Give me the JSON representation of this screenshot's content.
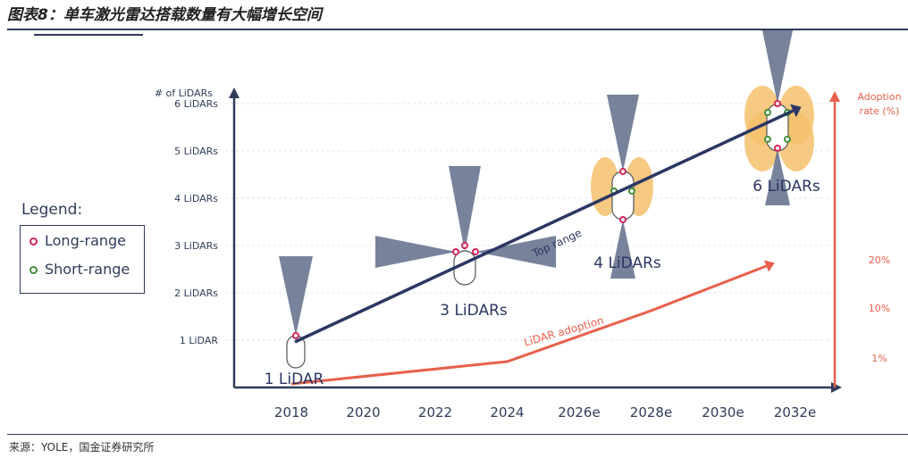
{
  "header": {
    "title": "图表8：单车激光雷达搭载数量有大幅增长空间"
  },
  "footer": {
    "source": "来源：YOLE，国金证券研究所"
  },
  "legend": {
    "title": "Legend:",
    "items": [
      {
        "label": "Long-range",
        "color": "#d2245a"
      },
      {
        "label": "Short-range",
        "color": "#3e8f3a"
      }
    ]
  },
  "colors": {
    "axis": "#2f3c5a",
    "trend": "#2b3663",
    "adoption": "#e8604c",
    "beam": "#5f6c8a",
    "short_range_lobe": "#f5c16c",
    "long_range_dot": "#d2245a",
    "short_range_dot": "#3e8f3a"
  },
  "chart_data": {
    "type": "line",
    "x": [
      "2018",
      "2020",
      "2022",
      "2024",
      "2026e",
      "2028e",
      "2030e",
      "2032e"
    ],
    "ylabel_left": "# of LiDARs",
    "ylabel_right": "Adoption rate (%)",
    "left_ticks": [
      "1 LiDAR",
      "2 LiDARs",
      "3 LiDARs",
      "4 LiDARs",
      "5 LiDARs",
      "6 LiDARs"
    ],
    "right_ticks": [
      "1%",
      "10%",
      "20%"
    ],
    "ylim_left": [
      0,
      6
    ],
    "series": [
      {
        "name": "Top range",
        "points": [
          {
            "x": "2018",
            "y": 1
          },
          {
            "x": "2032e",
            "y": 6
          }
        ],
        "annotations": [
          {
            "x": "2018",
            "y": 1,
            "label": "1 LiDAR"
          },
          {
            "x": "2022",
            "y": 3,
            "label": "3 LiDARs"
          },
          {
            "x": "2028e",
            "y": 4,
            "label": "4 LiDARs"
          },
          {
            "x": "2032e",
            "y": 6,
            "label": "6 LiDARs"
          }
        ]
      },
      {
        "name": "LiDAR adoption",
        "points": [
          {
            "x": "2018",
            "y": 0
          },
          {
            "x": "2024",
            "y": 1
          },
          {
            "x": "2028e",
            "y": 10
          },
          {
            "x": "2032e",
            "y": 20
          }
        ]
      }
    ],
    "grid": true
  }
}
